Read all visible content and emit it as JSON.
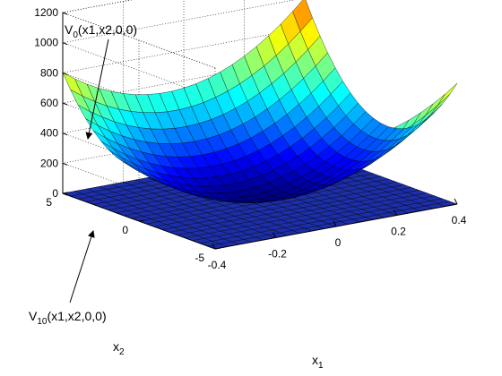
{
  "chart_data": {
    "type": "surface3d",
    "title": "",
    "xlabel": "x",
    "xlabel_sub": "1",
    "ylabel": "x",
    "ylabel_sub": "2",
    "zlabel": "",
    "xlim": [
      -0.4,
      0.4
    ],
    "ylim": [
      -5,
      5
    ],
    "zlim": [
      0,
      1200
    ],
    "x_ticks": [
      -0.4,
      -0.2,
      0,
      0.2,
      0.4
    ],
    "x_tick_labels": [
      "-0.4",
      "-0.2",
      "0",
      "0.2",
      "0.4"
    ],
    "y_ticks": [
      -5,
      0,
      5
    ],
    "y_tick_labels": [
      "-5",
      "0",
      "5"
    ],
    "z_ticks": [
      0,
      200,
      400,
      600,
      800,
      1000,
      1200
    ],
    "z_tick_labels": [
      "0",
      "200",
      "400",
      "600",
      "800",
      "1000",
      "1200"
    ],
    "grid": true,
    "colormap": "jet",
    "grid_resolution": 21,
    "series": [
      {
        "name": "V0(x1,x2,0,0)",
        "kind": "quadratic-bowl",
        "coefficients": {
          "x1x1": 2200,
          "x2x2": 22,
          "x1x2": 50
        }
      },
      {
        "name": "V10(x1,x2,0,0)",
        "kind": "flat",
        "value": 0,
        "color": "#1c2ea8"
      }
    ],
    "annotations": [
      {
        "text_main": "V",
        "text_sub": "0",
        "text_rest": "(x1,x2,0,0)"
      },
      {
        "text_main": "V",
        "text_sub": "10",
        "text_rest": "(x1,x2,0,0)"
      }
    ]
  }
}
